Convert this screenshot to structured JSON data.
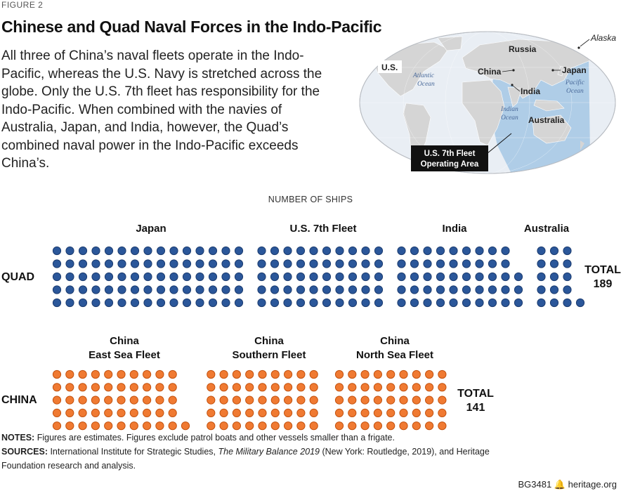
{
  "figure_label": "FIGURE 2",
  "title": "Chinese and Quad Naval Forces in the Indo-Pacific",
  "description": "All three of China’s naval fleets operate in the Indo-Pacific, whereas the U.S. Navy is stretched across the globe. Only the U.S. 7th fleet has responsibility for the Indo-Pacific. When combined with the navies of Australia, Japan, and India, however, the Quad’s combined naval power in the Indo-Pacific exceeds China’s.",
  "map": {
    "labels": {
      "alaska": "Alaska",
      "russia": "Russia",
      "us": "U.S.",
      "china": "China",
      "japan": "Japan",
      "india": "India",
      "australia": "Australia",
      "atlantic_1": "Atlantic",
      "atlantic_2": "Ocean",
      "pacific_1": "Pacific",
      "pacific_2": "Ocean",
      "indian_1": "Indian",
      "indian_2": "Ocean",
      "fleet_1": "U.S. 7th Fleet",
      "fleet_2": "Operating Area"
    },
    "colors": {
      "ocean": "#e9eef4",
      "land": "#d5d5d5",
      "operating_area": "#a9c9e6"
    }
  },
  "chart_data": {
    "type": "pictogram",
    "title": "NUMBER OF SHIPS",
    "dots_per_column": 5,
    "rows": [
      {
        "label": "QUAD",
        "total_label": "TOTAL",
        "total": 189,
        "color": "#2b579a",
        "groups": [
          {
            "name": [
              "Japan"
            ],
            "values": 75
          },
          {
            "name": [
              "U.S. 7th Fleet"
            ],
            "values": 50
          },
          {
            "name": [
              "India"
            ],
            "values": 48
          },
          {
            "name": [
              "Australia"
            ],
            "values": 16
          }
        ]
      },
      {
        "label": "CHINA",
        "total_label": "TOTAL",
        "total": 141,
        "color": "#f07a32",
        "groups": [
          {
            "name": [
              "China",
              "East Sea Fleet"
            ],
            "values": 51
          },
          {
            "name": [
              "China",
              "Southern Fleet"
            ],
            "values": 45
          },
          {
            "name": [
              "China",
              "North Sea Fleet"
            ],
            "values": 45
          }
        ]
      }
    ]
  },
  "notes": {
    "notes_label": "NOTES:",
    "notes_text": " Figures are estimates. Figures exclude patrol boats and other vessels smaller than a frigate.",
    "sources_label": "SOURCES:",
    "sources_text_1": " International Institute for Strategic Studies, ",
    "sources_italic": "The Military Balance 2019",
    "sources_text_2": " (New York: Routledge, 2019), and Heritage Foundation research and analysis."
  },
  "footer": {
    "code": "BG3481",
    "site": "heritage.org"
  }
}
